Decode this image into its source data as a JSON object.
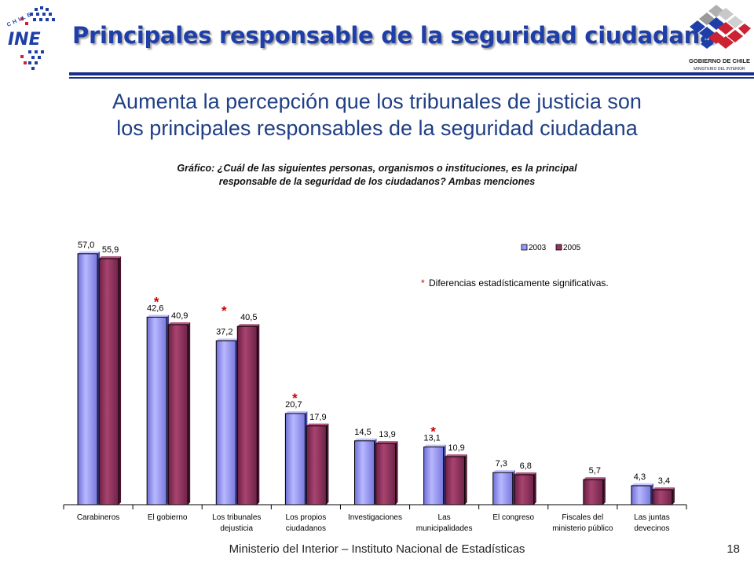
{
  "header": {
    "title": "Principales responsable de la seguridad ciudadana"
  },
  "logos": {
    "ine_text": "INE",
    "ine_country": "CHILE",
    "gov_line1": "GOBIERNO DE CHILE",
    "gov_line2": "MINISTERIO DEL INTERIOR"
  },
  "slide": {
    "subtitle_line1": "Aumenta la percepción que los tribunales de justicia son",
    "subtitle_line2": "los principales responsables de la seguridad ciudadana",
    "caption_line1": "Gráfico: ¿Cuál de las siguientes personas, organismos o instituciones, es la principal",
    "caption_line2": "responsable de la seguridad de los ciudadanos? Ambas menciones"
  },
  "chart_data": {
    "type": "bar",
    "categories": [
      [
        "Carabineros"
      ],
      [
        "El gobierno"
      ],
      [
        "Los tribunales",
        "dejusticia"
      ],
      [
        "Los propios",
        "ciudadanos"
      ],
      [
        "Investigaciones"
      ],
      [
        "Las",
        "municipalidades"
      ],
      [
        "El congreso"
      ],
      [
        "Fiscales del",
        "ministerio público"
      ],
      [
        "Las juntas",
        "devecinos"
      ]
    ],
    "series": [
      {
        "name": "2003",
        "color": "#9999ff",
        "values": [
          57.0,
          42.6,
          37.2,
          20.7,
          14.5,
          13.1,
          7.3,
          null,
          4.3
        ],
        "labels": [
          "57,0",
          "42,6",
          "37,2",
          "20,7",
          "14,5",
          "13,1",
          "7,3",
          "",
          "4,3"
        ]
      },
      {
        "name": "2005",
        "color": "#993366",
        "values": [
          55.9,
          40.9,
          40.5,
          17.9,
          13.9,
          10.9,
          6.8,
          5.7,
          3.4
        ],
        "labels": [
          "55,9",
          "40,9",
          "40,5",
          "17,9",
          "13,9",
          "10,9",
          "6,8",
          "5,7",
          "3,4"
        ]
      }
    ],
    "significant": [
      false,
      true,
      true,
      true,
      false,
      true,
      false,
      false,
      false
    ],
    "significance_marker": "*",
    "significance_color": "#cc0000",
    "significance_note": "Diferencias estadísticamente significativas.",
    "legend_position": "top-right",
    "ylim": [
      0,
      60
    ],
    "grid": false
  },
  "footer": {
    "text": "Ministerio del Interior – Instituto Nacional de Estadísticas",
    "page": "18"
  }
}
